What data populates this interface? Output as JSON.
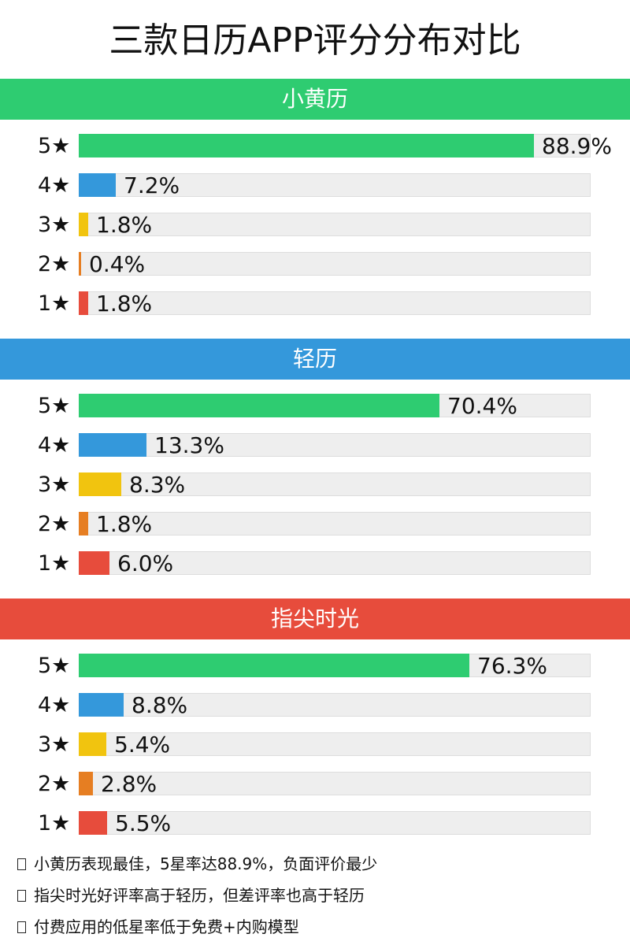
{
  "page_title": "三款日历APP评分分布对比",
  "colors": {
    "star5": "#2ecc71",
    "star4": "#3498db",
    "star3": "#f1c40f",
    "star2": "#e67e22",
    "star1": "#e74c3c"
  },
  "chart_data": [
    {
      "type": "bar",
      "title": "小黄历",
      "header_color": "#2ecc71",
      "categories": [
        "5★",
        "4★",
        "3★",
        "2★",
        "1★"
      ],
      "values": [
        88.9,
        7.2,
        1.8,
        0.4,
        1.8
      ],
      "value_labels": [
        "88.9%",
        "7.2%",
        "1.8%",
        "0.4%",
        "1.8%"
      ],
      "unit": "%",
      "xlim": [
        0,
        100
      ]
    },
    {
      "type": "bar",
      "title": "轻历",
      "header_color": "#3498db",
      "categories": [
        "5★",
        "4★",
        "3★",
        "2★",
        "1★"
      ],
      "values": [
        70.4,
        13.3,
        8.3,
        1.8,
        6.0
      ],
      "value_labels": [
        "70.4%",
        "13.3%",
        "8.3%",
        "1.8%",
        "6.0%"
      ],
      "unit": "%",
      "xlim": [
        0,
        100
      ]
    },
    {
      "type": "bar",
      "title": "指尖时光",
      "header_color": "#e74c3c",
      "categories": [
        "5★",
        "4★",
        "3★",
        "2★",
        "1★"
      ],
      "values": [
        76.3,
        8.8,
        5.4,
        2.8,
        5.5
      ],
      "value_labels": [
        "76.3%",
        "8.8%",
        "5.4%",
        "2.8%",
        "5.5%"
      ],
      "unit": "%",
      "xlim": [
        0,
        100
      ]
    }
  ],
  "notes": [
    "小黄历表现最佳，5星率达88.9%，负面评价最少",
    "指尖时光好评率高于轻历，但差评率也高于轻历",
    "付费应用的低星率低于免费+内购模型"
  ]
}
